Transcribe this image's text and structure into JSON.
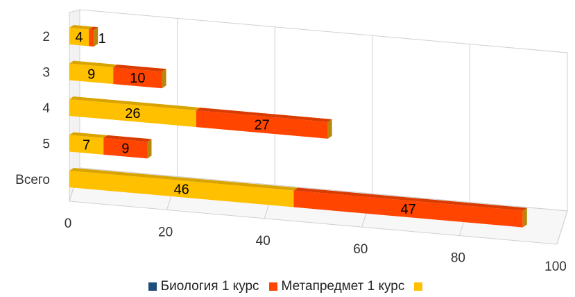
{
  "chart_data": {
    "type": "bar",
    "orientation": "horizontal",
    "stacked": true,
    "style": "3d",
    "categories": [
      "2",
      "3",
      "4",
      "5",
      "Всего"
    ],
    "series": [
      {
        "name": "",
        "values": [
          4,
          9,
          26,
          7,
          46
        ],
        "color": "#FFC000"
      },
      {
        "name": "Метапредмет 1 курс",
        "values": [
          1,
          10,
          27,
          9,
          47
        ],
        "color": "#FF4500"
      }
    ],
    "xlim": [
      0,
      100
    ],
    "xticks": [
      "0",
      "20",
      "40",
      "60",
      "80",
      "100"
    ],
    "grid": true,
    "legend": {
      "position": "bottom",
      "entries": [
        {
          "label": "Биология 1 курс",
          "color": "#1F4E79"
        },
        {
          "label": "Метапредмет 1 курс",
          "color": "#FF4500"
        },
        {
          "label": "",
          "color": "#FFC000"
        }
      ]
    }
  }
}
